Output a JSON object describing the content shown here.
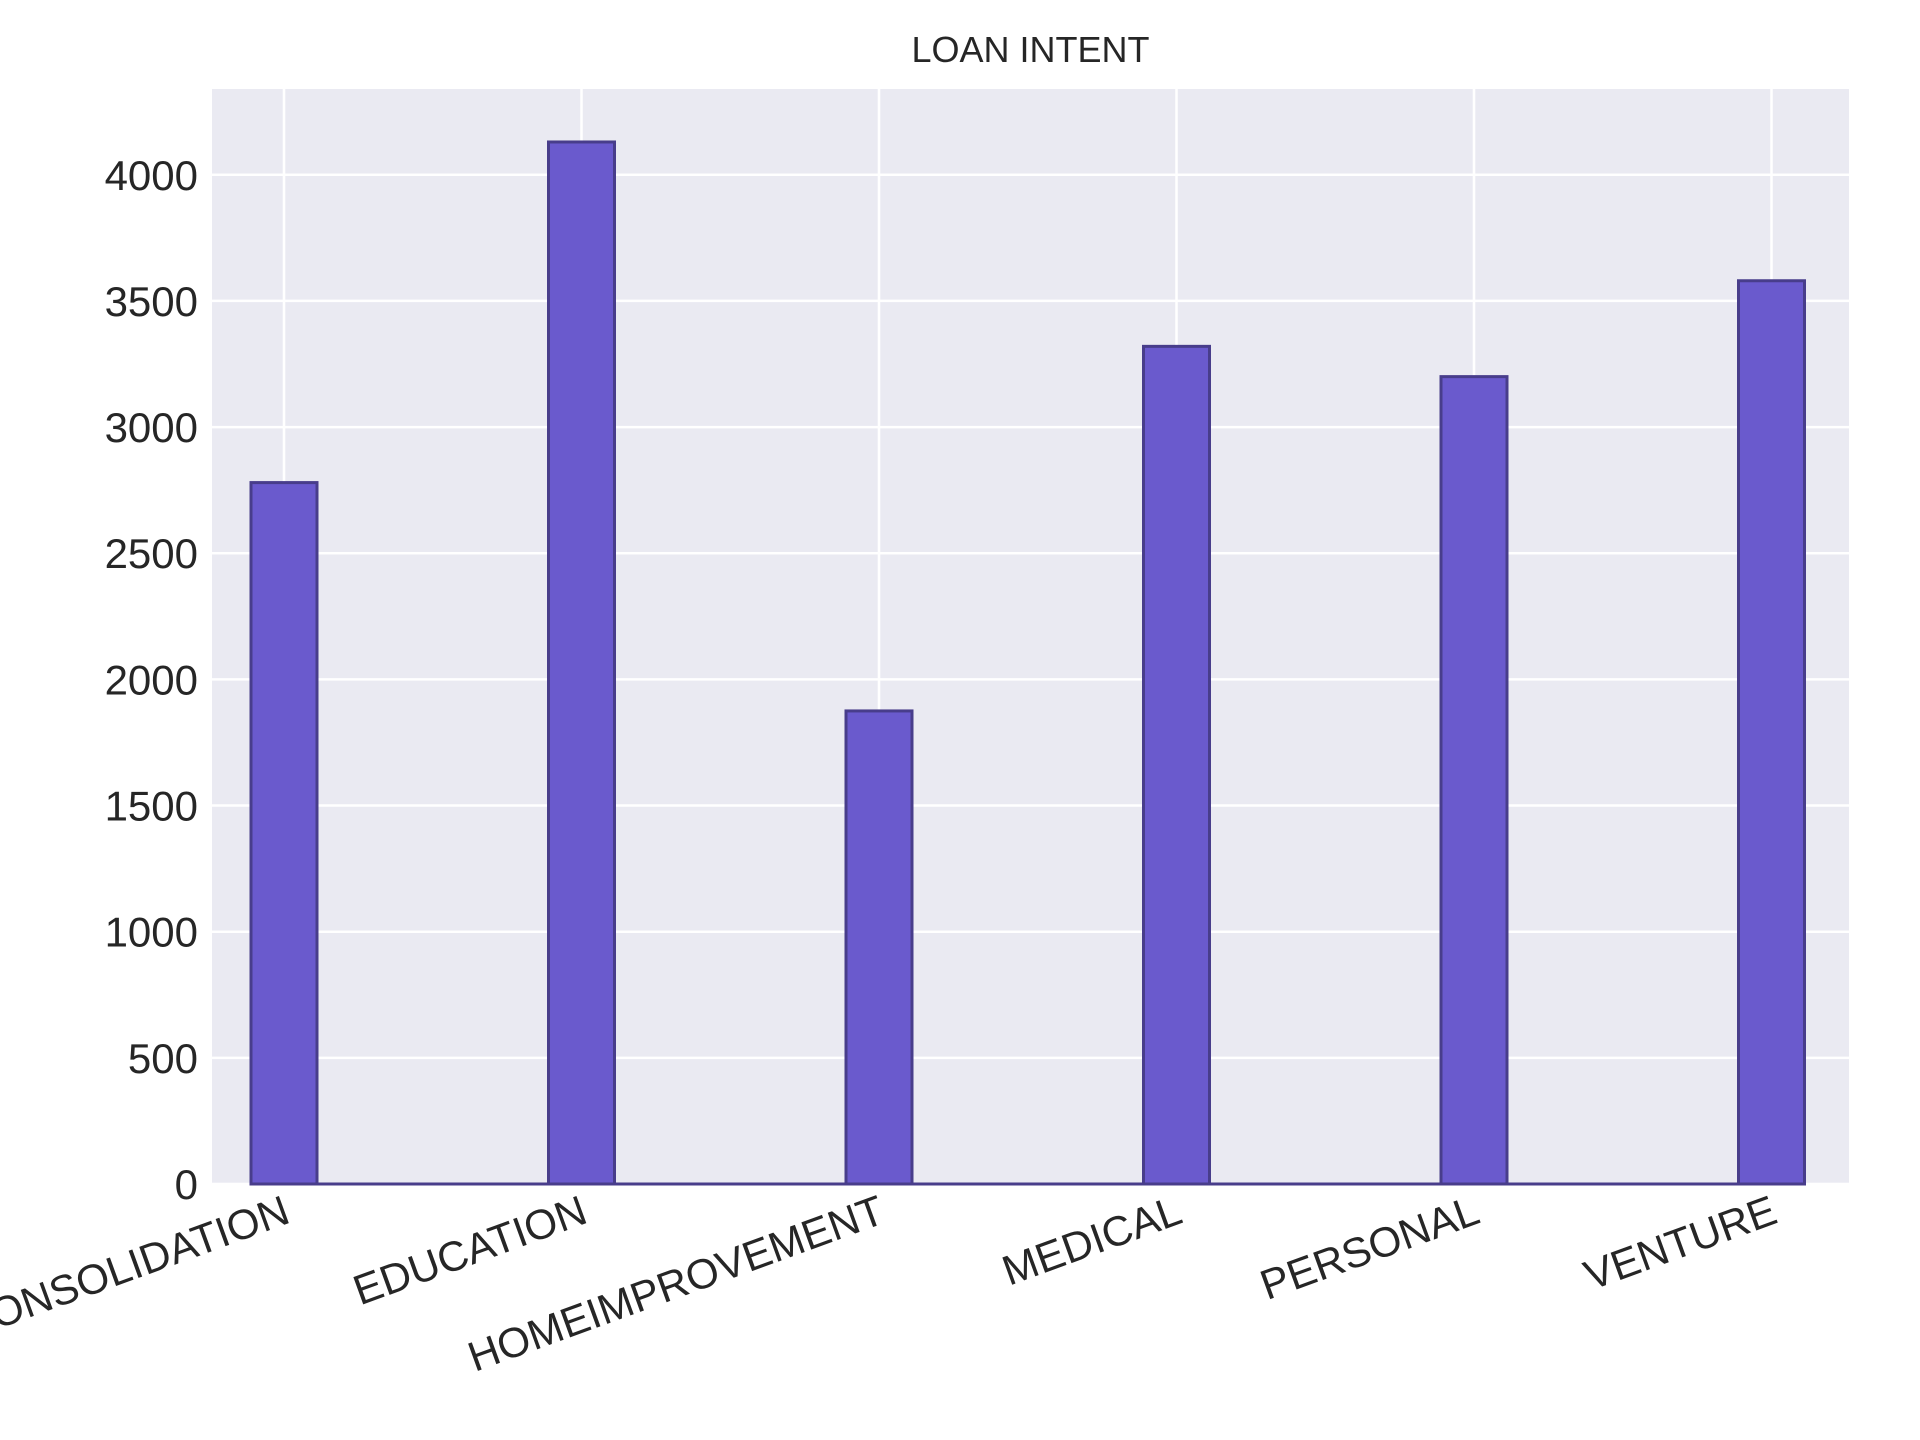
{
  "chart_data": {
    "type": "bar",
    "title": "LOAN INTENT",
    "xlabel": "",
    "ylabel": "",
    "categories": [
      "DEBTCONSOLIDATION",
      "EDUCATION",
      "HOMEIMPROVEMENT",
      "MEDICAL",
      "PERSONAL",
      "VENTURE"
    ],
    "values": [
      2780,
      4130,
      1875,
      3320,
      3200,
      3580
    ],
    "ylim": [
      0,
      4340
    ],
    "yticks": [
      0,
      500,
      1000,
      1500,
      2000,
      2500,
      3000,
      3500,
      4000
    ],
    "grid": true,
    "legend": "none",
    "colors": {
      "bar_fill": "#6a5acd",
      "bar_edge": "#483d8b",
      "plot_background": "#eaeaf2",
      "grid": "#ffffff",
      "text": "#262626"
    }
  }
}
